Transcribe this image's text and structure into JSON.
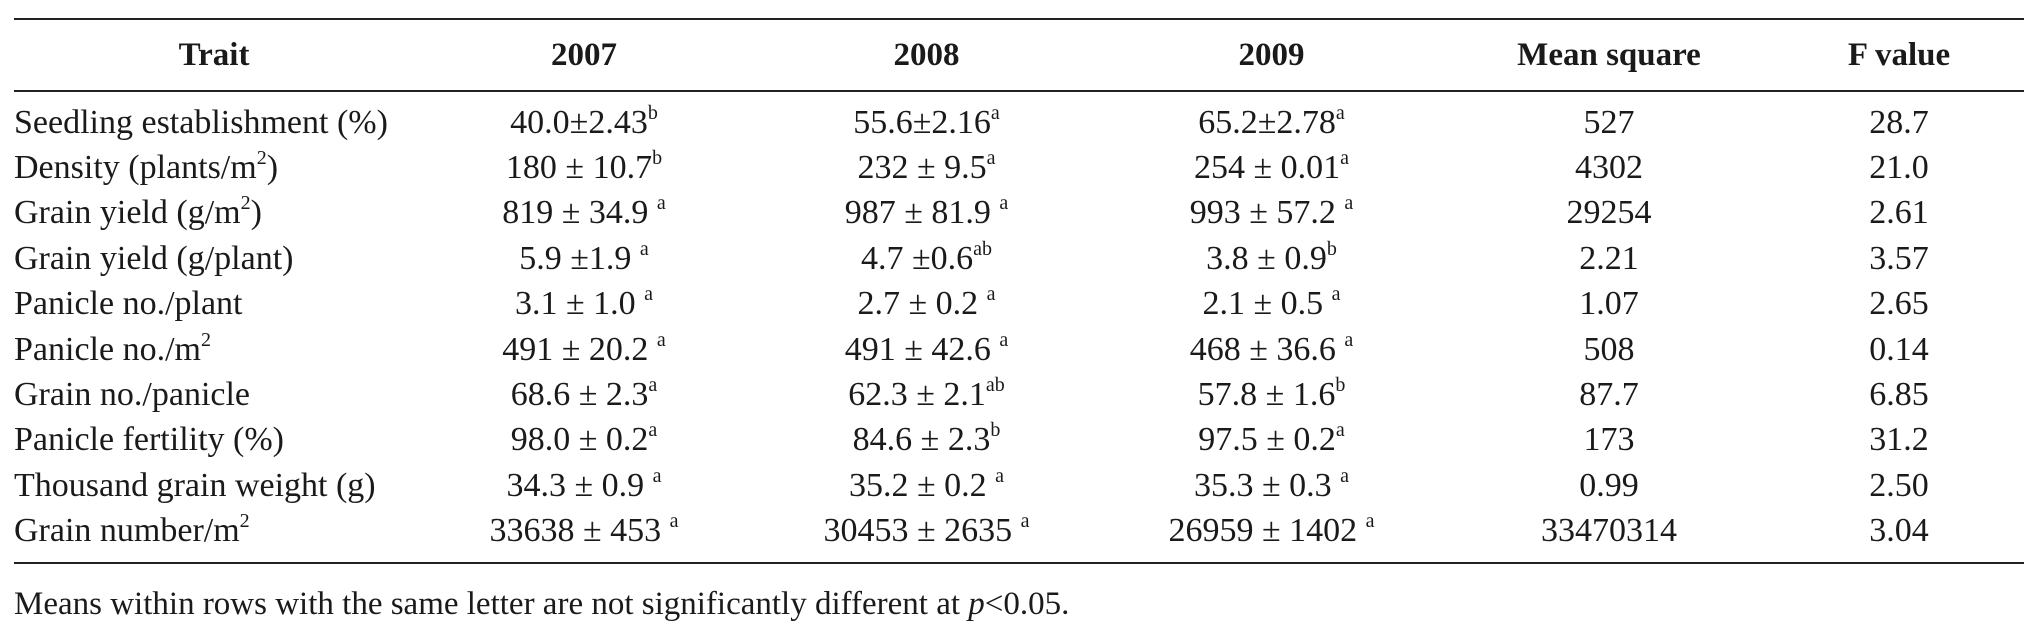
{
  "table": {
    "headers": [
      "Trait",
      "2007",
      "2008",
      "2009",
      "Mean square",
      "F value"
    ],
    "rows": [
      {
        "trait": "Seedling establishment (%)",
        "trait_sup": "",
        "y2007": "40.0±2.43",
        "y2007_sup": "b",
        "y2008": "55.6±2.16",
        "y2008_sup": "a",
        "y2009": "65.2±2.78",
        "y2009_sup": "a",
        "mean_square": "527",
        "f_value": "28.7"
      },
      {
        "trait": "Density (plants/m",
        "trait_sup": "2",
        "trait_tail": ")",
        "y2007": "180 ± 10.7",
        "y2007_sup": "b",
        "y2008": "232 ± 9.5",
        "y2008_sup": "a",
        "y2009": "254 ± 0.01",
        "y2009_sup": "a",
        "mean_square": "4302",
        "f_value": "21.0"
      },
      {
        "trait": "Grain yield (g/m",
        "trait_sup": "2",
        "trait_tail": ")",
        "y2007": "819 ± 34.9 ",
        "y2007_sup": "a",
        "y2008": "987 ± 81.9 ",
        "y2008_sup": "a",
        "y2009": "993 ± 57.2 ",
        "y2009_sup": "a",
        "mean_square": "29254",
        "f_value": "2.61"
      },
      {
        "trait": "Grain yield (g/plant)",
        "trait_sup": "",
        "y2007": "5.9 ±1.9 ",
        "y2007_sup": "a",
        "y2008": "4.7 ±0.6",
        "y2008_sup": "ab",
        "y2009": "3.8 ± 0.9",
        "y2009_sup": "b",
        "mean_square": "2.21",
        "f_value": "3.57"
      },
      {
        "trait": "Panicle no./plant",
        "trait_sup": "",
        "y2007": "3.1 ± 1.0 ",
        "y2007_sup": "a",
        "y2008": "2.7 ± 0.2 ",
        "y2008_sup": "a",
        "y2009": "2.1 ± 0.5 ",
        "y2009_sup": "a",
        "mean_square": "1.07",
        "f_value": "2.65"
      },
      {
        "trait": "Panicle no./m",
        "trait_sup": "2",
        "y2007": "491 ± 20.2 ",
        "y2007_sup": "a",
        "y2008": "491 ± 42.6 ",
        "y2008_sup": "a",
        "y2009": "468 ± 36.6 ",
        "y2009_sup": "a",
        "mean_square": "508",
        "f_value": "0.14"
      },
      {
        "trait": "Grain no./panicle",
        "trait_sup": "",
        "y2007": "68.6 ± 2.3",
        "y2007_sup": "a",
        "y2008": "62.3 ± 2.1",
        "y2008_sup": "ab",
        "y2009": "57.8 ± 1.6",
        "y2009_sup": "b",
        "mean_square": "87.7",
        "f_value": "6.85"
      },
      {
        "trait": "Panicle fertility (%)",
        "trait_sup": "",
        "y2007": "98.0 ± 0.2",
        "y2007_sup": "a",
        "y2008": "84.6 ± 2.3",
        "y2008_sup": "b",
        "y2009": "97.5 ± 0.2",
        "y2009_sup": "a",
        "mean_square": "173",
        "f_value": "31.2"
      },
      {
        "trait": "Thousand grain weight (g)",
        "trait_sup": "",
        "y2007": "34.3 ± 0.9 ",
        "y2007_sup": "a",
        "y2008": "35.2 ± 0.2 ",
        "y2008_sup": "a",
        "y2009": "35.3 ± 0.3 ",
        "y2009_sup": "a",
        "mean_square": "0.99",
        "f_value": "2.50"
      },
      {
        "trait": "Grain number/m",
        "trait_sup": "2",
        "y2007": "33638 ± 453 ",
        "y2007_sup": "a",
        "y2008": "30453 ± 2635 ",
        "y2008_sup": "a",
        "y2009": "26959 ± 1402 ",
        "y2009_sup": "a",
        "mean_square": "33470314",
        "f_value": "3.04"
      }
    ]
  },
  "footnote": {
    "before": "Means within rows with the same letter are not significantly different at ",
    "italic": "p",
    "after": "<0.05."
  }
}
